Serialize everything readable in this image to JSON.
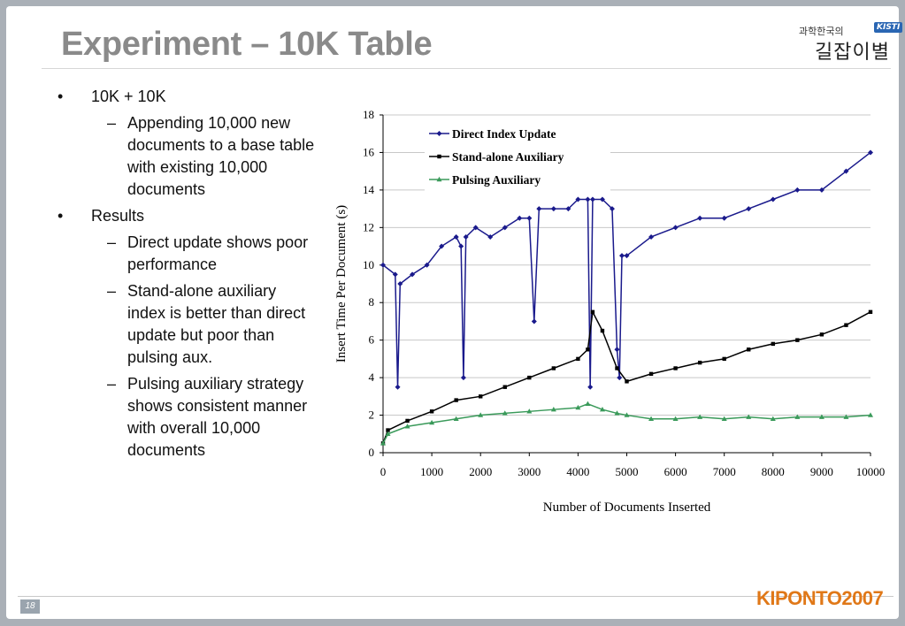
{
  "slide": {
    "title": "Experiment – 10K Table",
    "page_number": "18",
    "brand": "KIPONTO2007",
    "logo_top": "과학한국의",
    "logo_badge": "KISTI",
    "logo_main": "길잡이별"
  },
  "bullets": {
    "b1": "10K + 10K",
    "b1_1": "Appending 10,000 new documents to a base table with existing 10,000 documents",
    "b2": "Results",
    "b2_1": "Direct update shows poor performance",
    "b2_2": "Stand-alone auxiliary index is better than direct update but poor than pulsing aux.",
    "b2_3": "Pulsing auxiliary strategy shows consistent manner with overall 10,000 documents"
  },
  "chart_data": {
    "type": "line",
    "xlabel": "Number of Documents Inserted",
    "ylabel": "Insert Time Per  Document (s)",
    "xlim": [
      0,
      10000
    ],
    "ylim": [
      0,
      18
    ],
    "xticks": [
      0,
      1000,
      2000,
      3000,
      4000,
      5000,
      6000,
      7000,
      8000,
      9000,
      10000
    ],
    "yticks": [
      0,
      2,
      4,
      6,
      8,
      10,
      12,
      14,
      16,
      18
    ],
    "grid": "horizontal",
    "legend_position": "top-left",
    "series": [
      {
        "name": "Direct Index Update",
        "color": "#1a1a8c",
        "marker": "diamond",
        "x": [
          0,
          250,
          300,
          350,
          600,
          900,
          1200,
          1500,
          1600,
          1650,
          1700,
          1900,
          2200,
          2500,
          2800,
          3000,
          3100,
          3200,
          3500,
          3800,
          4000,
          4200,
          4250,
          4300,
          4500,
          4700,
          4800,
          4850,
          4900,
          5000,
          5500,
          6000,
          6500,
          7000,
          7500,
          8000,
          8500,
          9000,
          9500,
          10000
        ],
        "y": [
          10.0,
          9.5,
          3.5,
          9.0,
          9.5,
          10.0,
          11.0,
          11.5,
          11.0,
          4.0,
          11.5,
          12.0,
          11.5,
          12.0,
          12.5,
          12.5,
          7.0,
          13.0,
          13.0,
          13.0,
          13.5,
          13.5,
          3.5,
          13.5,
          13.5,
          13.0,
          5.5,
          4.0,
          10.5,
          10.5,
          11.5,
          12.0,
          12.5,
          12.5,
          13.0,
          13.5,
          14.0,
          14.0,
          15.0,
          16.0
        ]
      },
      {
        "name": "Stand-alone Auxiliary",
        "color": "#000000",
        "marker": "square",
        "x": [
          0,
          100,
          500,
          1000,
          1500,
          2000,
          2500,
          3000,
          3500,
          4000,
          4200,
          4300,
          4500,
          4800,
          5000,
          5500,
          6000,
          6500,
          7000,
          7500,
          8000,
          8500,
          9000,
          9500,
          10000
        ],
        "y": [
          0.5,
          1.2,
          1.7,
          2.2,
          2.8,
          3.0,
          3.5,
          4.0,
          4.5,
          5.0,
          5.5,
          7.5,
          6.5,
          4.5,
          3.8,
          4.2,
          4.5,
          4.8,
          5.0,
          5.5,
          5.8,
          6.0,
          6.3,
          6.8,
          7.5
        ]
      },
      {
        "name": "Pulsing Auxiliary",
        "color": "#3a9a5a",
        "marker": "triangle",
        "x": [
          0,
          100,
          500,
          1000,
          1500,
          2000,
          2500,
          3000,
          3500,
          4000,
          4200,
          4500,
          4800,
          5000,
          5500,
          6000,
          6500,
          7000,
          7500,
          8000,
          8500,
          9000,
          9500,
          10000
        ],
        "y": [
          0.5,
          1.0,
          1.4,
          1.6,
          1.8,
          2.0,
          2.1,
          2.2,
          2.3,
          2.4,
          2.6,
          2.3,
          2.1,
          2.0,
          1.8,
          1.8,
          1.9,
          1.8,
          1.9,
          1.8,
          1.9,
          1.9,
          1.9,
          2.0
        ]
      }
    ]
  }
}
